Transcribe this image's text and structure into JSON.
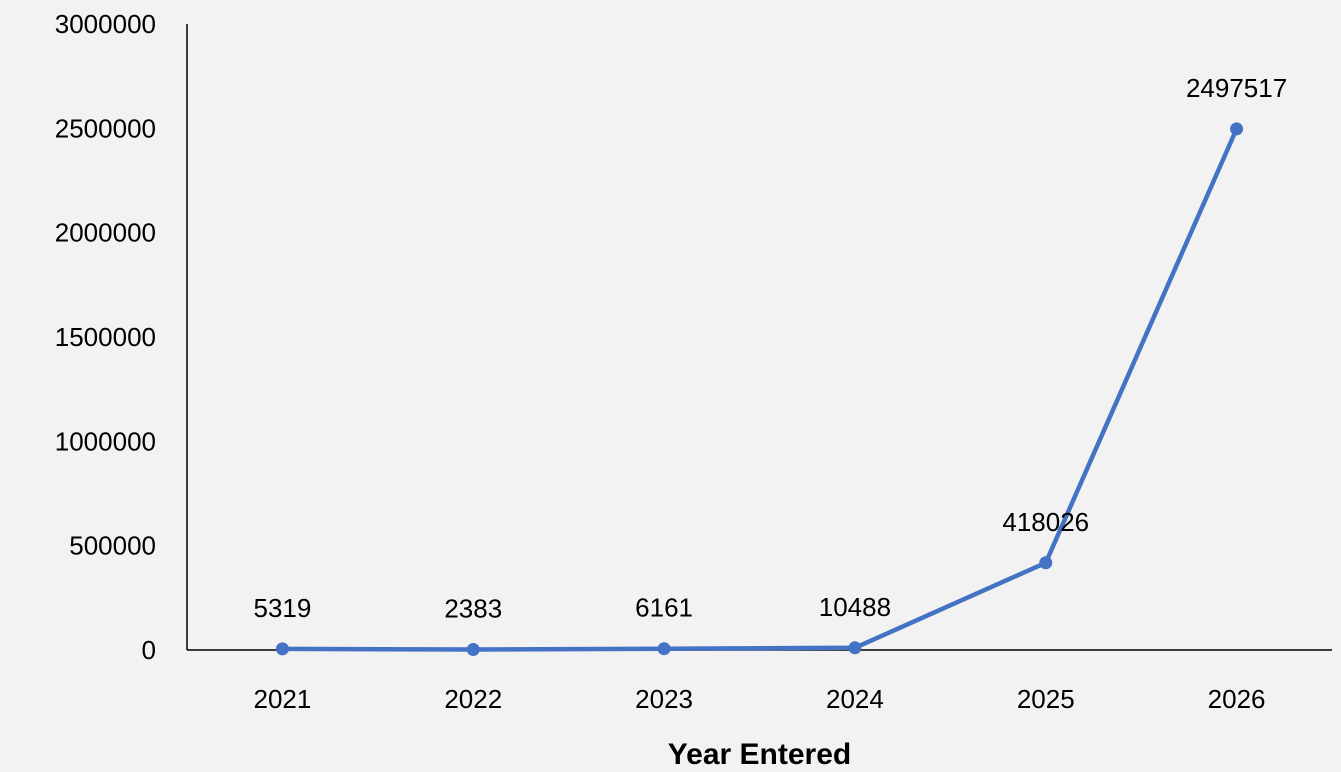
{
  "colors": {
    "background": "#f2f2f2",
    "series": "#4472c4",
    "axis": "#000000"
  },
  "chart_data": {
    "type": "line",
    "title": "",
    "xlabel": "Year Entered",
    "ylabel": "",
    "categories": [
      "2021",
      "2022",
      "2023",
      "2024",
      "2025",
      "2026"
    ],
    "series": [
      {
        "values": [
          5319,
          2383,
          6161,
          10488,
          418026,
          2497517
        ],
        "marker": "circle",
        "color": "#4472c4"
      }
    ],
    "data_labels": [
      "5319",
      "2383",
      "6161",
      "10488",
      "418026",
      "2497517"
    ],
    "ylim": [
      0,
      3000000
    ],
    "yticks": [
      0,
      500000,
      1000000,
      1500000,
      2000000,
      2500000,
      3000000
    ],
    "ytick_labels": [
      "0",
      "500000",
      "1000000",
      "1500000",
      "2000000",
      "2500000",
      "3000000"
    ],
    "grid": false,
    "legend": "none"
  }
}
